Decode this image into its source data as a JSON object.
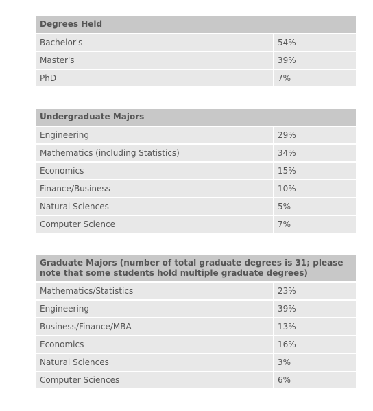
{
  "tables": [
    {
      "title": "Degrees Held",
      "rows": [
        [
          "Bachelor's",
          "54%"
        ],
        [
          "Master's",
          "39%"
        ],
        [
          "PhD",
          "7%"
        ]
      ]
    },
    {
      "title": "Undergraduate Majors",
      "rows": [
        [
          "Engineering",
          "29%"
        ],
        [
          "Mathematics (including Statistics)",
          "34%"
        ],
        [
          "Economics",
          "15%"
        ],
        [
          "Finance/Business",
          "10%"
        ],
        [
          "Natural Sciences",
          "5%"
        ],
        [
          "Computer Science",
          "7%"
        ]
      ]
    },
    {
      "title": "Graduate Majors (number of total graduate degrees is 31; please note that some students hold multiple graduate degrees)",
      "rows": [
        [
          "Mathematics/Statistics",
          "23%"
        ],
        [
          "Engineering",
          "39%"
        ],
        [
          "Business/Finance/MBA",
          "13%"
        ],
        [
          "Economics",
          "16%"
        ],
        [
          "Natural Sciences",
          "3%"
        ],
        [
          "Computer Sciences",
          "6%"
        ]
      ]
    }
  ]
}
